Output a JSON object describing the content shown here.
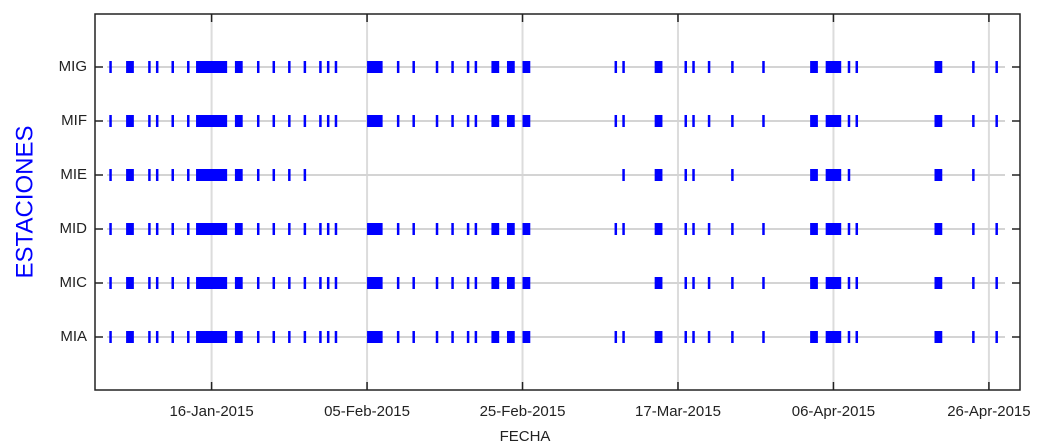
{
  "chart_data": {
    "type": "timeline",
    "xlabel": "FECHA",
    "ylabel": "ESTACIONES",
    "xlim": [
      "2015-01-01",
      "2015-04-30"
    ],
    "xticks": [
      {
        "value": "2015-01-16",
        "label": "16-Jan-2015"
      },
      {
        "value": "2015-02-05",
        "label": "05-Feb-2015"
      },
      {
        "value": "2015-02-25",
        "label": "25-Feb-2015"
      },
      {
        "value": "2015-03-17",
        "label": "17-Mar-2015"
      },
      {
        "value": "2015-04-06",
        "label": "06-Apr-2015"
      },
      {
        "value": "2015-04-26",
        "label": "26-Apr-2015"
      }
    ],
    "grid": true,
    "series": [
      {
        "name": "MIA",
        "color": "#0000ff",
        "values": [
          [
            "2015-01-03",
            "2015-01-03"
          ],
          [
            "2015-01-05",
            "2015-01-06"
          ],
          [
            "2015-01-08",
            "2015-01-08"
          ],
          [
            "2015-01-09",
            "2015-01-09"
          ],
          [
            "2015-01-11",
            "2015-01-11"
          ],
          [
            "2015-01-13",
            "2015-01-13"
          ],
          [
            "2015-01-14",
            "2015-01-18"
          ],
          [
            "2015-01-19",
            "2015-01-20"
          ],
          [
            "2015-01-22",
            "2015-01-22"
          ],
          [
            "2015-01-24",
            "2015-01-24"
          ],
          [
            "2015-01-26",
            "2015-01-26"
          ],
          [
            "2015-01-28",
            "2015-01-28"
          ],
          [
            "2015-01-30",
            "2015-01-30"
          ],
          [
            "2015-01-31",
            "2015-01-31"
          ],
          [
            "2015-02-01",
            "2015-02-01"
          ],
          [
            "2015-02-05",
            "2015-02-07"
          ],
          [
            "2015-02-09",
            "2015-02-09"
          ],
          [
            "2015-02-11",
            "2015-02-11"
          ],
          [
            "2015-02-14",
            "2015-02-14"
          ],
          [
            "2015-02-16",
            "2015-02-16"
          ],
          [
            "2015-02-18",
            "2015-02-18"
          ],
          [
            "2015-02-19",
            "2015-02-19"
          ],
          [
            "2015-02-21",
            "2015-02-22"
          ],
          [
            "2015-02-23",
            "2015-02-24"
          ],
          [
            "2015-02-25",
            "2015-02-26"
          ],
          [
            "2015-03-09",
            "2015-03-09"
          ],
          [
            "2015-03-10",
            "2015-03-10"
          ],
          [
            "2015-03-14",
            "2015-03-15"
          ],
          [
            "2015-03-18",
            "2015-03-18"
          ],
          [
            "2015-03-19",
            "2015-03-19"
          ],
          [
            "2015-03-21",
            "2015-03-21"
          ],
          [
            "2015-03-24",
            "2015-03-24"
          ],
          [
            "2015-03-28",
            "2015-03-28"
          ],
          [
            "2015-04-03",
            "2015-04-04"
          ],
          [
            "2015-04-05",
            "2015-04-07"
          ],
          [
            "2015-04-08",
            "2015-04-08"
          ],
          [
            "2015-04-09",
            "2015-04-09"
          ],
          [
            "2015-04-19",
            "2015-04-20"
          ],
          [
            "2015-04-24",
            "2015-04-24"
          ],
          [
            "2015-04-27",
            "2015-04-27"
          ]
        ]
      },
      {
        "name": "MIC",
        "color": "#0000ff",
        "values": [
          [
            "2015-01-03",
            "2015-01-03"
          ],
          [
            "2015-01-05",
            "2015-01-06"
          ],
          [
            "2015-01-08",
            "2015-01-08"
          ],
          [
            "2015-01-09",
            "2015-01-09"
          ],
          [
            "2015-01-11",
            "2015-01-11"
          ],
          [
            "2015-01-13",
            "2015-01-13"
          ],
          [
            "2015-01-14",
            "2015-01-18"
          ],
          [
            "2015-01-19",
            "2015-01-20"
          ],
          [
            "2015-01-22",
            "2015-01-22"
          ],
          [
            "2015-01-24",
            "2015-01-24"
          ],
          [
            "2015-01-26",
            "2015-01-26"
          ],
          [
            "2015-01-28",
            "2015-01-28"
          ],
          [
            "2015-01-30",
            "2015-01-30"
          ],
          [
            "2015-01-31",
            "2015-01-31"
          ],
          [
            "2015-02-01",
            "2015-02-01"
          ],
          [
            "2015-02-05",
            "2015-02-07"
          ],
          [
            "2015-02-09",
            "2015-02-09"
          ],
          [
            "2015-02-11",
            "2015-02-11"
          ],
          [
            "2015-02-14",
            "2015-02-14"
          ],
          [
            "2015-02-16",
            "2015-02-16"
          ],
          [
            "2015-02-18",
            "2015-02-18"
          ],
          [
            "2015-02-19",
            "2015-02-19"
          ],
          [
            "2015-02-21",
            "2015-02-22"
          ],
          [
            "2015-02-23",
            "2015-02-24"
          ],
          [
            "2015-02-25",
            "2015-02-26"
          ],
          [
            "2015-03-14",
            "2015-03-15"
          ],
          [
            "2015-03-18",
            "2015-03-18"
          ],
          [
            "2015-03-19",
            "2015-03-19"
          ],
          [
            "2015-03-21",
            "2015-03-21"
          ],
          [
            "2015-03-24",
            "2015-03-24"
          ],
          [
            "2015-03-28",
            "2015-03-28"
          ],
          [
            "2015-04-03",
            "2015-04-04"
          ],
          [
            "2015-04-05",
            "2015-04-07"
          ],
          [
            "2015-04-08",
            "2015-04-08"
          ],
          [
            "2015-04-09",
            "2015-04-09"
          ],
          [
            "2015-04-19",
            "2015-04-20"
          ],
          [
            "2015-04-24",
            "2015-04-24"
          ],
          [
            "2015-04-27",
            "2015-04-27"
          ]
        ]
      },
      {
        "name": "MID",
        "color": "#0000ff",
        "values": [
          [
            "2015-01-03",
            "2015-01-03"
          ],
          [
            "2015-01-05",
            "2015-01-06"
          ],
          [
            "2015-01-08",
            "2015-01-08"
          ],
          [
            "2015-01-09",
            "2015-01-09"
          ],
          [
            "2015-01-11",
            "2015-01-11"
          ],
          [
            "2015-01-13",
            "2015-01-13"
          ],
          [
            "2015-01-14",
            "2015-01-18"
          ],
          [
            "2015-01-19",
            "2015-01-20"
          ],
          [
            "2015-01-22",
            "2015-01-22"
          ],
          [
            "2015-01-24",
            "2015-01-24"
          ],
          [
            "2015-01-26",
            "2015-01-26"
          ],
          [
            "2015-01-28",
            "2015-01-28"
          ],
          [
            "2015-01-30",
            "2015-01-30"
          ],
          [
            "2015-01-31",
            "2015-01-31"
          ],
          [
            "2015-02-01",
            "2015-02-01"
          ],
          [
            "2015-02-05",
            "2015-02-07"
          ],
          [
            "2015-02-09",
            "2015-02-09"
          ],
          [
            "2015-02-11",
            "2015-02-11"
          ],
          [
            "2015-02-14",
            "2015-02-14"
          ],
          [
            "2015-02-16",
            "2015-02-16"
          ],
          [
            "2015-02-18",
            "2015-02-18"
          ],
          [
            "2015-02-19",
            "2015-02-19"
          ],
          [
            "2015-02-21",
            "2015-02-22"
          ],
          [
            "2015-02-23",
            "2015-02-24"
          ],
          [
            "2015-02-25",
            "2015-02-26"
          ],
          [
            "2015-03-09",
            "2015-03-09"
          ],
          [
            "2015-03-10",
            "2015-03-10"
          ],
          [
            "2015-03-14",
            "2015-03-15"
          ],
          [
            "2015-03-18",
            "2015-03-18"
          ],
          [
            "2015-03-19",
            "2015-03-19"
          ],
          [
            "2015-03-21",
            "2015-03-21"
          ],
          [
            "2015-03-24",
            "2015-03-24"
          ],
          [
            "2015-03-28",
            "2015-03-28"
          ],
          [
            "2015-04-03",
            "2015-04-04"
          ],
          [
            "2015-04-05",
            "2015-04-07"
          ],
          [
            "2015-04-08",
            "2015-04-08"
          ],
          [
            "2015-04-09",
            "2015-04-09"
          ],
          [
            "2015-04-19",
            "2015-04-20"
          ],
          [
            "2015-04-24",
            "2015-04-24"
          ],
          [
            "2015-04-27",
            "2015-04-27"
          ]
        ]
      },
      {
        "name": "MIE",
        "color": "#0000ff",
        "values": [
          [
            "2015-01-03",
            "2015-01-03"
          ],
          [
            "2015-01-05",
            "2015-01-06"
          ],
          [
            "2015-01-08",
            "2015-01-08"
          ],
          [
            "2015-01-09",
            "2015-01-09"
          ],
          [
            "2015-01-11",
            "2015-01-11"
          ],
          [
            "2015-01-13",
            "2015-01-13"
          ],
          [
            "2015-01-14",
            "2015-01-18"
          ],
          [
            "2015-01-19",
            "2015-01-20"
          ],
          [
            "2015-01-22",
            "2015-01-22"
          ],
          [
            "2015-01-24",
            "2015-01-24"
          ],
          [
            "2015-01-26",
            "2015-01-26"
          ],
          [
            "2015-01-28",
            "2015-01-28"
          ],
          [
            "2015-03-10",
            "2015-03-10"
          ],
          [
            "2015-03-14",
            "2015-03-15"
          ],
          [
            "2015-03-18",
            "2015-03-18"
          ],
          [
            "2015-03-19",
            "2015-03-19"
          ],
          [
            "2015-03-24",
            "2015-03-24"
          ],
          [
            "2015-04-03",
            "2015-04-04"
          ],
          [
            "2015-04-05",
            "2015-04-07"
          ],
          [
            "2015-04-08",
            "2015-04-08"
          ],
          [
            "2015-04-19",
            "2015-04-20"
          ],
          [
            "2015-04-24",
            "2015-04-24"
          ]
        ]
      },
      {
        "name": "MIF",
        "color": "#0000ff",
        "values": [
          [
            "2015-01-03",
            "2015-01-03"
          ],
          [
            "2015-01-05",
            "2015-01-06"
          ],
          [
            "2015-01-08",
            "2015-01-08"
          ],
          [
            "2015-01-09",
            "2015-01-09"
          ],
          [
            "2015-01-11",
            "2015-01-11"
          ],
          [
            "2015-01-13",
            "2015-01-13"
          ],
          [
            "2015-01-14",
            "2015-01-18"
          ],
          [
            "2015-01-19",
            "2015-01-20"
          ],
          [
            "2015-01-22",
            "2015-01-22"
          ],
          [
            "2015-01-24",
            "2015-01-24"
          ],
          [
            "2015-01-26",
            "2015-01-26"
          ],
          [
            "2015-01-28",
            "2015-01-28"
          ],
          [
            "2015-01-30",
            "2015-01-30"
          ],
          [
            "2015-01-31",
            "2015-01-31"
          ],
          [
            "2015-02-01",
            "2015-02-01"
          ],
          [
            "2015-02-05",
            "2015-02-07"
          ],
          [
            "2015-02-09",
            "2015-02-09"
          ],
          [
            "2015-02-11",
            "2015-02-11"
          ],
          [
            "2015-02-14",
            "2015-02-14"
          ],
          [
            "2015-02-16",
            "2015-02-16"
          ],
          [
            "2015-02-18",
            "2015-02-18"
          ],
          [
            "2015-02-19",
            "2015-02-19"
          ],
          [
            "2015-02-21",
            "2015-02-22"
          ],
          [
            "2015-02-23",
            "2015-02-24"
          ],
          [
            "2015-02-25",
            "2015-02-26"
          ],
          [
            "2015-03-09",
            "2015-03-09"
          ],
          [
            "2015-03-10",
            "2015-03-10"
          ],
          [
            "2015-03-14",
            "2015-03-15"
          ],
          [
            "2015-03-18",
            "2015-03-18"
          ],
          [
            "2015-03-19",
            "2015-03-19"
          ],
          [
            "2015-03-21",
            "2015-03-21"
          ],
          [
            "2015-03-24",
            "2015-03-24"
          ],
          [
            "2015-03-28",
            "2015-03-28"
          ],
          [
            "2015-04-03",
            "2015-04-04"
          ],
          [
            "2015-04-05",
            "2015-04-07"
          ],
          [
            "2015-04-08",
            "2015-04-08"
          ],
          [
            "2015-04-09",
            "2015-04-09"
          ],
          [
            "2015-04-19",
            "2015-04-20"
          ],
          [
            "2015-04-24",
            "2015-04-24"
          ],
          [
            "2015-04-27",
            "2015-04-27"
          ]
        ]
      },
      {
        "name": "MIG",
        "color": "#0000ff",
        "values": [
          [
            "2015-01-03",
            "2015-01-03"
          ],
          [
            "2015-01-05",
            "2015-01-06"
          ],
          [
            "2015-01-08",
            "2015-01-08"
          ],
          [
            "2015-01-09",
            "2015-01-09"
          ],
          [
            "2015-01-11",
            "2015-01-11"
          ],
          [
            "2015-01-13",
            "2015-01-13"
          ],
          [
            "2015-01-14",
            "2015-01-18"
          ],
          [
            "2015-01-19",
            "2015-01-20"
          ],
          [
            "2015-01-22",
            "2015-01-22"
          ],
          [
            "2015-01-24",
            "2015-01-24"
          ],
          [
            "2015-01-26",
            "2015-01-26"
          ],
          [
            "2015-01-28",
            "2015-01-28"
          ],
          [
            "2015-01-30",
            "2015-01-30"
          ],
          [
            "2015-01-31",
            "2015-01-31"
          ],
          [
            "2015-02-01",
            "2015-02-01"
          ],
          [
            "2015-02-05",
            "2015-02-07"
          ],
          [
            "2015-02-09",
            "2015-02-09"
          ],
          [
            "2015-02-11",
            "2015-02-11"
          ],
          [
            "2015-02-14",
            "2015-02-14"
          ],
          [
            "2015-02-16",
            "2015-02-16"
          ],
          [
            "2015-02-18",
            "2015-02-18"
          ],
          [
            "2015-02-19",
            "2015-02-19"
          ],
          [
            "2015-02-21",
            "2015-02-22"
          ],
          [
            "2015-02-23",
            "2015-02-24"
          ],
          [
            "2015-02-25",
            "2015-02-26"
          ],
          [
            "2015-03-09",
            "2015-03-09"
          ],
          [
            "2015-03-10",
            "2015-03-10"
          ],
          [
            "2015-03-14",
            "2015-03-15"
          ],
          [
            "2015-03-18",
            "2015-03-18"
          ],
          [
            "2015-03-19",
            "2015-03-19"
          ],
          [
            "2015-03-21",
            "2015-03-21"
          ],
          [
            "2015-03-24",
            "2015-03-24"
          ],
          [
            "2015-03-28",
            "2015-03-28"
          ],
          [
            "2015-04-03",
            "2015-04-04"
          ],
          [
            "2015-04-05",
            "2015-04-07"
          ],
          [
            "2015-04-08",
            "2015-04-08"
          ],
          [
            "2015-04-09",
            "2015-04-09"
          ],
          [
            "2015-04-19",
            "2015-04-20"
          ],
          [
            "2015-04-24",
            "2015-04-24"
          ],
          [
            "2015-04-27",
            "2015-04-27"
          ]
        ]
      }
    ]
  }
}
